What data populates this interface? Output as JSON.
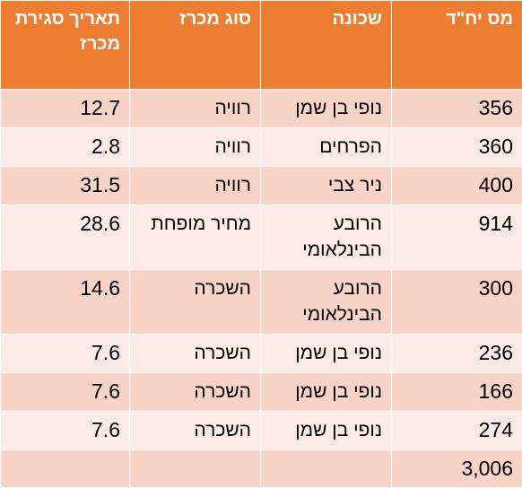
{
  "table": {
    "headers": [
      "מס יח\"ד",
      "שכונה",
      "סוג מכרז",
      "תאריך סגירת מכרז"
    ],
    "rows": [
      {
        "units": "356",
        "neighborhood": "נופי בן שמן",
        "tender_type": "רוויה",
        "closing_date": "12.7"
      },
      {
        "units": "360",
        "neighborhood": "הפרחים",
        "tender_type": "רוויה",
        "closing_date": "2.8"
      },
      {
        "units": "400",
        "neighborhood": "ניר צבי",
        "tender_type": "רוויה",
        "closing_date": "31.5"
      },
      {
        "units": "914",
        "neighborhood": "הרובע הבינלאומי",
        "tender_type": "מחיר מופחת",
        "closing_date": "28.6"
      },
      {
        "units": "300",
        "neighborhood": "הרובע הבינלאומי",
        "tender_type": "השכרה",
        "closing_date": "14.6"
      },
      {
        "units": "236",
        "neighborhood": "נופי בן שמן",
        "tender_type": "השכרה",
        "closing_date": "7.6"
      },
      {
        "units": "166",
        "neighborhood": "נופי בן שמן",
        "tender_type": "השכרה",
        "closing_date": "7.6"
      },
      {
        "units": "274",
        "neighborhood": "נופי בן שמן",
        "tender_type": "השכרה",
        "closing_date": "7.6"
      }
    ],
    "total": {
      "units": "3,006",
      "neighborhood": "",
      "tender_type": "",
      "closing_date": ""
    }
  },
  "colors": {
    "header_bg": "#ed7d31",
    "row_odd_bg": "#f8d3c7",
    "row_even_bg": "#fbeae5"
  }
}
